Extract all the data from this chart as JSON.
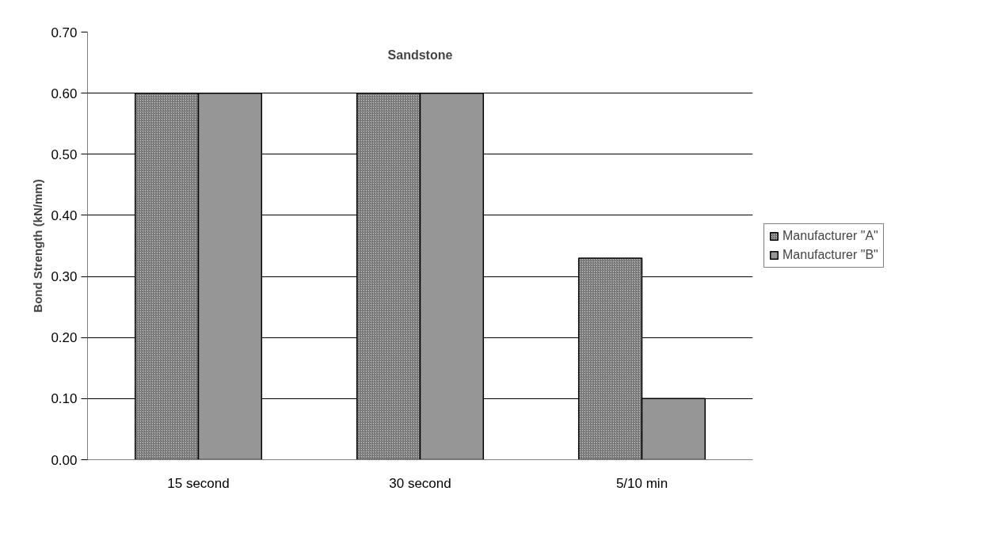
{
  "chart_data": {
    "type": "bar",
    "title": "Sandstone",
    "ylabel": "Bond Strength (kN/mm)",
    "categories": [
      "15 second",
      "30 second",
      "5/10 min"
    ],
    "series": [
      {
        "name": "Manufacturer \"A\"",
        "color": "#c0c0c0",
        "values": [
          0.6,
          0.6,
          0.33
        ]
      },
      {
        "name": "Manufacturer \"B\"",
        "color": "#969696",
        "values": [
          0.6,
          0.6,
          0.1
        ]
      }
    ],
    "ylim": [
      0,
      0.7
    ],
    "yticks": [
      {
        "value": 0,
        "label": "0.00"
      },
      {
        "value": 0.1,
        "label": "0.10"
      },
      {
        "value": 0.2,
        "label": "0.20"
      },
      {
        "value": 0.3,
        "label": "0.30"
      },
      {
        "value": 0.4,
        "label": "0.40"
      },
      {
        "value": 0.5,
        "label": "0.50"
      },
      {
        "value": 0.6,
        "label": "0.60"
      },
      {
        "value": 0.7,
        "label": "0.70"
      }
    ],
    "grid": "y",
    "legend": "right"
  }
}
